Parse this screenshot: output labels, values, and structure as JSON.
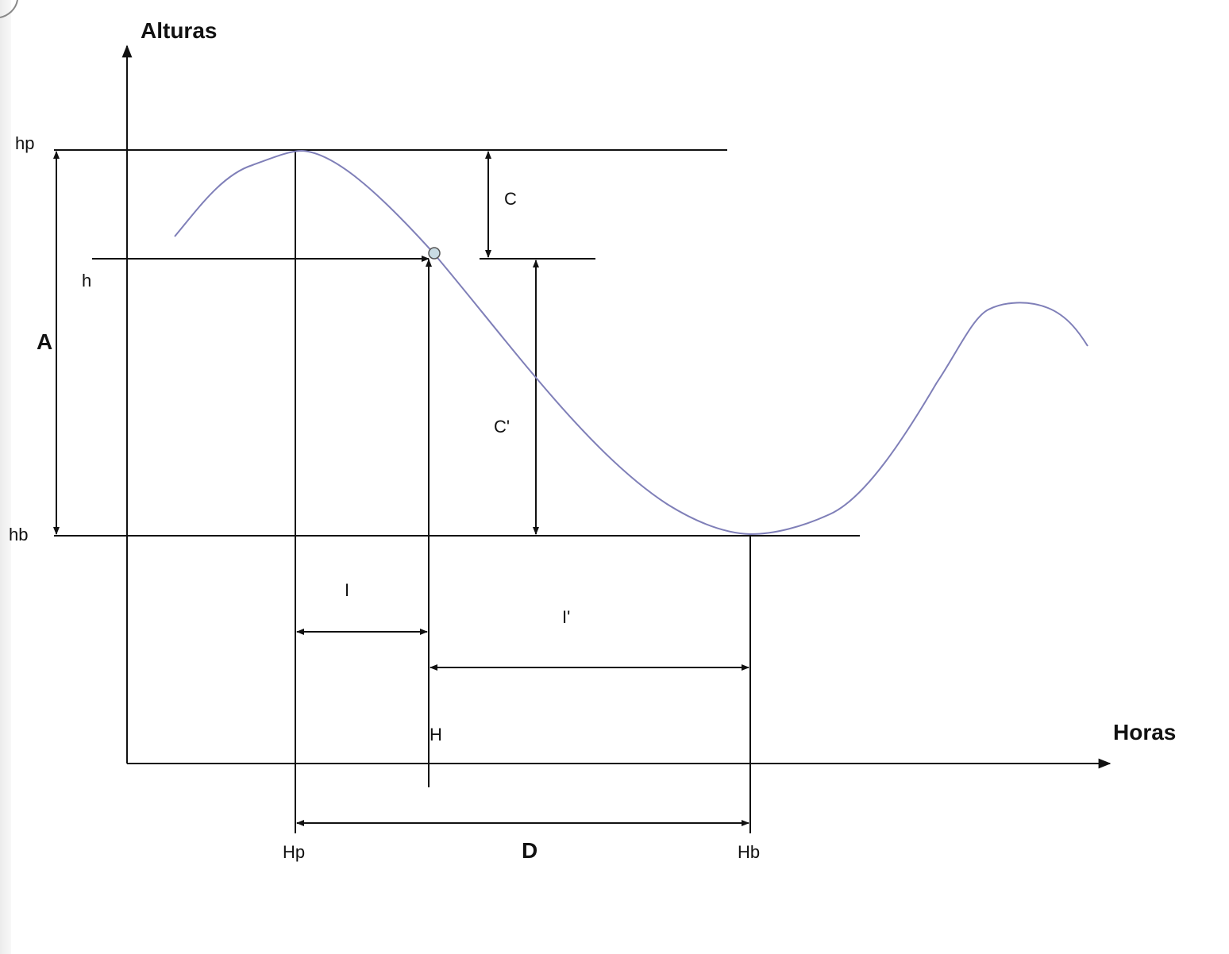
{
  "axes": {
    "y_label": "Alturas",
    "x_label": "Horas"
  },
  "labels": {
    "hp": "hp",
    "h": "h",
    "hb": "hb",
    "A": "A",
    "C": "C",
    "C_prime": "C'",
    "I": "I",
    "I_prime": "I'",
    "H": "H",
    "Hp": "Hp",
    "D": "D",
    "Hb": "Hb"
  },
  "colors": {
    "curve": "#7f7fb8",
    "line": "#111111",
    "point_fill": "#c9dbe3"
  }
}
